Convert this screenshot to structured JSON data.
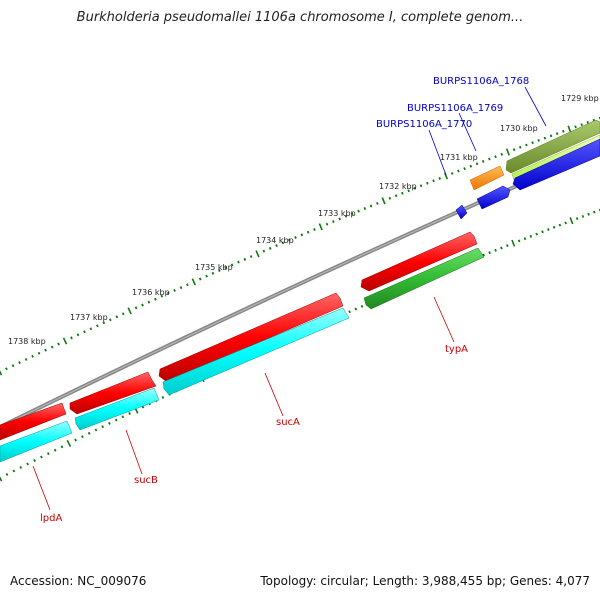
{
  "title": "Burkholderia pseudomallei 1106a chromosome I, complete genom...",
  "footer": {
    "accession": "Accession: NC_009076",
    "summary": "Topology: circular; Length: 3,988,455 bp; Genes: 4,077"
  },
  "ticks": [
    "1729 kbp",
    "1730 kbp",
    "1731 kbp",
    "1732 kbp",
    "1733 kbp",
    "1734 kbp",
    "1735 kbp",
    "1736 kbp",
    "1737 kbp",
    "1738 kbp"
  ],
  "genes": {
    "burps1768": "BURPS1106A_1768",
    "burps1769": "BURPS1106A_1769",
    "burps1770": "BURPS1106A_1770",
    "typA": "typA",
    "sucA": "sucA",
    "sucB": "sucB",
    "lpdA": "lpdA"
  },
  "colors": {
    "cds_red": "#ff0000",
    "cds_cyan": "#00ffff",
    "cds_green": "#33bb33",
    "cds_olive": "#7ea23a",
    "cds_lime": "#ccff66",
    "cds_blue": "#0000ff",
    "cds_orange": "#ff8800",
    "backbone": "#888888",
    "tick": "#117711",
    "label_blue": "#0000cc",
    "label_red": "#cc0000"
  }
}
